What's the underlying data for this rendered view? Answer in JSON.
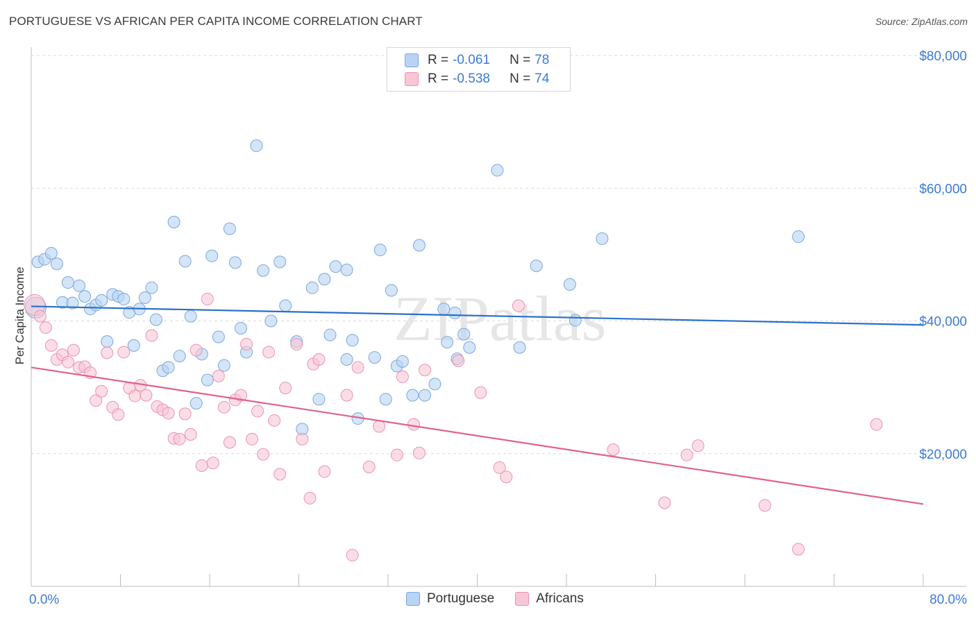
{
  "header": {
    "title": "PORTUGUESE VS AFRICAN PER CAPITA INCOME CORRELATION CHART",
    "source": "Source: ZipAtlas.com"
  },
  "watermark": "ZIPatlas",
  "legend": {
    "rows": [
      {
        "r_label": "R =",
        "r_value": "-0.061",
        "n_label": "N =",
        "n_value": "78",
        "series": "Portuguese"
      },
      {
        "r_label": "R =",
        "r_value": "-0.538",
        "n_label": "N =",
        "n_value": "74",
        "series": "Africans"
      }
    ]
  },
  "colors": {
    "portuguese_fill": "#b8d3f3",
    "portuguese_stroke": "#7aa7df",
    "portuguese_line": "#2a6fc9",
    "africans_fill": "#f8c6d6",
    "africans_stroke": "#ea92b0",
    "africans_line": "#e0608e",
    "axis_text": "#3a7bd5",
    "grid": "#d9d9d9"
  },
  "chart_data": {
    "type": "scatter",
    "title": "PORTUGUESE VS AFRICAN PER CAPITA INCOME CORRELATION CHART",
    "ylabel": "Per Capita Income",
    "xlabel": "",
    "xlim": [
      0,
      80
    ],
    "ylim": [
      0,
      80000
    ],
    "x_tick_labels": [
      "0.0%",
      "80.0%"
    ],
    "y_tick_values": [
      20000,
      40000,
      60000,
      80000
    ],
    "y_tick_labels": [
      "$20,000",
      "$40,000",
      "$60,000",
      "$80,000"
    ],
    "grid": true,
    "legend_position": "top-center",
    "series": [
      {
        "name": "Portuguese",
        "trend": {
          "x": [
            0,
            80
          ],
          "y": [
            42200,
            39400
          ]
        },
        "points": [
          [
            0.6,
            48900
          ],
          [
            1.2,
            49300
          ],
          [
            1.8,
            50200
          ],
          [
            2.3,
            48600
          ],
          [
            2.8,
            42800
          ],
          [
            3.3,
            45800
          ],
          [
            3.7,
            42700
          ],
          [
            4.3,
            45300
          ],
          [
            4.8,
            43700
          ],
          [
            5.3,
            41800
          ],
          [
            5.8,
            42400
          ],
          [
            6.3,
            43100
          ],
          [
            6.8,
            36900
          ],
          [
            7.3,
            44000
          ],
          [
            7.8,
            43700
          ],
          [
            8.3,
            43300
          ],
          [
            8.8,
            41300
          ],
          [
            9.2,
            36300
          ],
          [
            9.7,
            41800
          ],
          [
            10.2,
            43500
          ],
          [
            10.8,
            45000
          ],
          [
            11.2,
            40200
          ],
          [
            11.8,
            32500
          ],
          [
            12.3,
            33000
          ],
          [
            12.8,
            54900
          ],
          [
            13.3,
            34700
          ],
          [
            13.8,
            49000
          ],
          [
            14.3,
            40700
          ],
          [
            14.8,
            27600
          ],
          [
            15.3,
            35000
          ],
          [
            15.8,
            31100
          ],
          [
            16.2,
            49800
          ],
          [
            16.8,
            37600
          ],
          [
            17.3,
            33300
          ],
          [
            17.8,
            53900
          ],
          [
            18.3,
            48800
          ],
          [
            18.8,
            38900
          ],
          [
            19.3,
            35300
          ],
          [
            20.2,
            66400
          ],
          [
            20.8,
            47600
          ],
          [
            21.5,
            40000
          ],
          [
            22.3,
            48900
          ],
          [
            22.8,
            42300
          ],
          [
            23.8,
            36900
          ],
          [
            24.3,
            23700
          ],
          [
            25.2,
            45000
          ],
          [
            25.8,
            28200
          ],
          [
            26.3,
            46300
          ],
          [
            26.8,
            37900
          ],
          [
            27.3,
            48200
          ],
          [
            28.3,
            47700
          ],
          [
            28.8,
            37100
          ],
          [
            28.3,
            34200
          ],
          [
            29.3,
            25300
          ],
          [
            30.8,
            34500
          ],
          [
            31.3,
            50700
          ],
          [
            31.8,
            28200
          ],
          [
            32.3,
            44600
          ],
          [
            32.8,
            33200
          ],
          [
            33.3,
            33900
          ],
          [
            34.2,
            28800
          ],
          [
            34.8,
            51400
          ],
          [
            35.3,
            28800
          ],
          [
            36.2,
            30500
          ],
          [
            37.0,
            41800
          ],
          [
            37.3,
            36800
          ],
          [
            38.0,
            41200
          ],
          [
            38.2,
            34300
          ],
          [
            38.8,
            38000
          ],
          [
            39.3,
            36000
          ],
          [
            41.8,
            62700
          ],
          [
            43.8,
            36000
          ],
          [
            45.3,
            48300
          ],
          [
            48.3,
            45500
          ],
          [
            48.8,
            40100
          ],
          [
            51.2,
            52400
          ],
          [
            68.8,
            52700
          ],
          [
            0.4,
            42000
          ]
        ]
      },
      {
        "name": "Africans",
        "trend": {
          "x": [
            0,
            80
          ],
          "y": [
            33000,
            12400
          ]
        },
        "points": [
          [
            0.3,
            42400
          ],
          [
            0.8,
            40700
          ],
          [
            1.3,
            39000
          ],
          [
            1.8,
            36300
          ],
          [
            2.3,
            34200
          ],
          [
            2.8,
            34900
          ],
          [
            3.3,
            33800
          ],
          [
            3.8,
            35600
          ],
          [
            4.3,
            33000
          ],
          [
            4.8,
            33100
          ],
          [
            5.3,
            32200
          ],
          [
            5.8,
            28000
          ],
          [
            6.3,
            29400
          ],
          [
            6.8,
            35200
          ],
          [
            7.3,
            27000
          ],
          [
            7.8,
            25900
          ],
          [
            8.3,
            35300
          ],
          [
            8.8,
            29900
          ],
          [
            9.3,
            28700
          ],
          [
            9.8,
            30300
          ],
          [
            10.3,
            28800
          ],
          [
            10.8,
            37800
          ],
          [
            11.3,
            27100
          ],
          [
            11.8,
            26600
          ],
          [
            12.3,
            26100
          ],
          [
            12.8,
            22300
          ],
          [
            13.3,
            22200
          ],
          [
            13.8,
            26000
          ],
          [
            14.3,
            22900
          ],
          [
            14.8,
            35600
          ],
          [
            15.3,
            18200
          ],
          [
            15.8,
            43300
          ],
          [
            16.3,
            18600
          ],
          [
            16.8,
            31700
          ],
          [
            17.3,
            27000
          ],
          [
            17.8,
            21700
          ],
          [
            18.3,
            28100
          ],
          [
            18.8,
            28800
          ],
          [
            19.3,
            36500
          ],
          [
            19.8,
            22200
          ],
          [
            20.3,
            26400
          ],
          [
            20.8,
            19900
          ],
          [
            21.3,
            35300
          ],
          [
            21.8,
            25000
          ],
          [
            22.3,
            16900
          ],
          [
            22.8,
            29900
          ],
          [
            23.8,
            36500
          ],
          [
            24.3,
            22200
          ],
          [
            25.0,
            13300
          ],
          [
            25.3,
            33500
          ],
          [
            25.8,
            34200
          ],
          [
            26.3,
            17300
          ],
          [
            28.3,
            28800
          ],
          [
            28.8,
            4700
          ],
          [
            29.3,
            33000
          ],
          [
            30.3,
            18000
          ],
          [
            31.2,
            24100
          ],
          [
            32.8,
            19800
          ],
          [
            33.3,
            31600
          ],
          [
            34.3,
            24400
          ],
          [
            34.8,
            20100
          ],
          [
            35.3,
            32600
          ],
          [
            38.3,
            34000
          ],
          [
            40.3,
            29200
          ],
          [
            42.0,
            17900
          ],
          [
            42.6,
            16500
          ],
          [
            43.7,
            42300
          ],
          [
            52.2,
            20600
          ],
          [
            56.8,
            12600
          ],
          [
            58.8,
            19800
          ],
          [
            59.8,
            21200
          ],
          [
            65.8,
            12200
          ],
          [
            68.8,
            5600
          ],
          [
            75.8,
            24400
          ]
        ]
      }
    ]
  },
  "bottom_legend": [
    {
      "label": "Portuguese"
    },
    {
      "label": "Africans"
    }
  ]
}
